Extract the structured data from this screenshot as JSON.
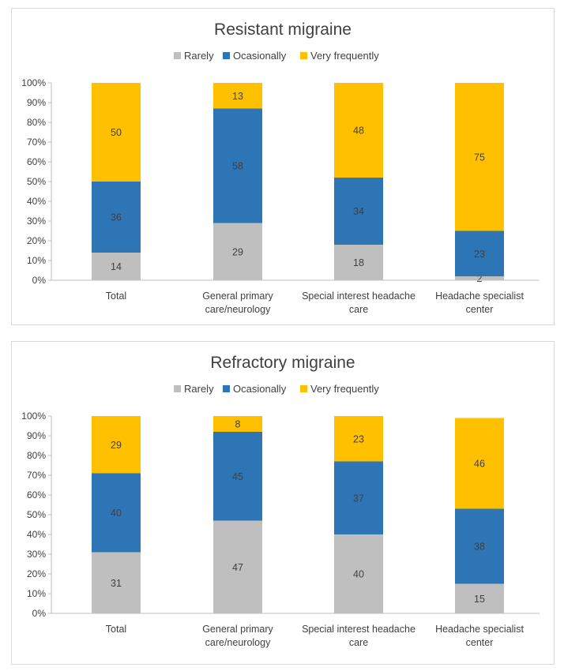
{
  "colors": {
    "Rarely": "#bfbfbf",
    "Ocasionally": "#2e75b6",
    "Very frequently": "#ffc000",
    "axis": "#bfbfbf",
    "text": "#404040"
  },
  "chart_data": [
    {
      "type": "bar",
      "stacked": true,
      "title": "Resistant migraine",
      "legend_position": "top",
      "categories": [
        [
          "Total"
        ],
        [
          "General primary",
          "care/neurology"
        ],
        [
          "Special interest headache",
          "care"
        ],
        [
          "Headache specialist",
          "center"
        ]
      ],
      "series": [
        {
          "name": "Rarely",
          "values": [
            14,
            29,
            18,
            2
          ]
        },
        {
          "name": "Ocasionally",
          "values": [
            36,
            58,
            34,
            23
          ]
        },
        {
          "name": "Very frequently",
          "values": [
            50,
            13,
            48,
            75
          ]
        }
      ],
      "yticks": [
        "0%",
        "10%",
        "20%",
        "30%",
        "40%",
        "50%",
        "60%",
        "70%",
        "80%",
        "90%",
        "100%"
      ],
      "ylim": [
        0,
        100
      ],
      "grid": false
    },
    {
      "type": "bar",
      "stacked": true,
      "title": "Refractory migraine",
      "legend_position": "top",
      "categories": [
        [
          "Total"
        ],
        [
          "General primary",
          "care/neurology"
        ],
        [
          "Special interest headache",
          "care"
        ],
        [
          "Headache specialist",
          "center"
        ]
      ],
      "series": [
        {
          "name": "Rarely",
          "values": [
            31,
            47,
            40,
            15
          ]
        },
        {
          "name": "Ocasionally",
          "values": [
            40,
            45,
            37,
            38
          ]
        },
        {
          "name": "Very frequently",
          "values": [
            29,
            8,
            23,
            46
          ]
        }
      ],
      "yticks": [
        "0%",
        "10%",
        "20%",
        "30%",
        "40%",
        "50%",
        "60%",
        "70%",
        "80%",
        "90%",
        "100%"
      ],
      "ylim": [
        0,
        100
      ],
      "grid": false
    }
  ]
}
